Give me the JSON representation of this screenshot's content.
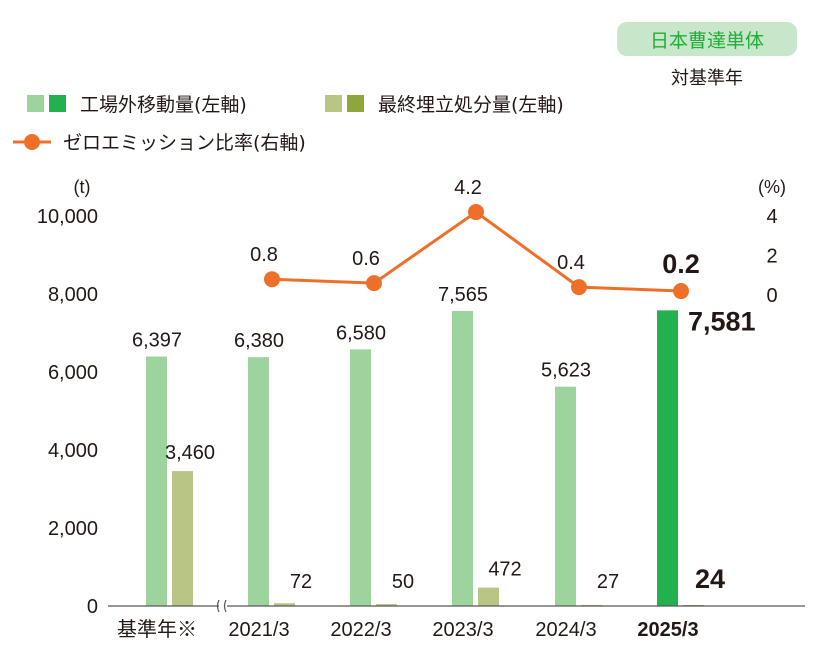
{
  "badge": "日本曹達単体",
  "badge_sub": "対基準年",
  "legend": {
    "offsite": "工場外移動量(左軸)",
    "landfill": "最終埋立処分量(左軸)",
    "zero_emission": "ゼロエミッション比率(右軸)"
  },
  "colors": {
    "offsite": "#9dd49d",
    "offsite_highlight": "#22b14c",
    "landfill": "#b9c585",
    "landfill_highlight": "#8ea63a",
    "zero_emission": "#ee6f28"
  },
  "chart_data": {
    "type": "bar",
    "categories": [
      "基準年※",
      "2021/3",
      "2022/3",
      "2023/3",
      "2024/3",
      "2025/3"
    ],
    "highlight_category": "2025/3",
    "series": [
      {
        "name": "工場外移動量(左軸)",
        "type": "bar",
        "axis": "left",
        "values": [
          6397,
          6380,
          6580,
          7565,
          5623,
          7581
        ],
        "labels": [
          "6,397",
          "6,380",
          "6,580",
          "7,565",
          "5,623",
          "7,581"
        ]
      },
      {
        "name": "最終埋立処分量(左軸)",
        "type": "bar",
        "axis": "left",
        "values": [
          3460,
          72,
          50,
          472,
          27,
          24
        ],
        "labels": [
          "3,460",
          "72",
          "50",
          "472",
          "27",
          "24"
        ]
      },
      {
        "name": "ゼロエミッション比率(右軸)",
        "type": "line",
        "axis": "right",
        "values": [
          null,
          0.8,
          0.6,
          4.2,
          0.4,
          0.2
        ],
        "labels": [
          "",
          "0.8",
          "0.6",
          "4.2",
          "0.4",
          "0.2"
        ]
      }
    ],
    "left_axis": {
      "unit": "(t)",
      "range": [
        0,
        10000
      ],
      "ticks": [
        "0",
        "2,000",
        "4,000",
        "6,000",
        "8,000",
        "10,000"
      ]
    },
    "right_axis": {
      "unit": "(%)",
      "range": [
        0,
        4
      ],
      "ticks": [
        "0",
        "2",
        "4"
      ]
    },
    "axis_break": true,
    "grid": false,
    "legend_position": "top-left"
  }
}
